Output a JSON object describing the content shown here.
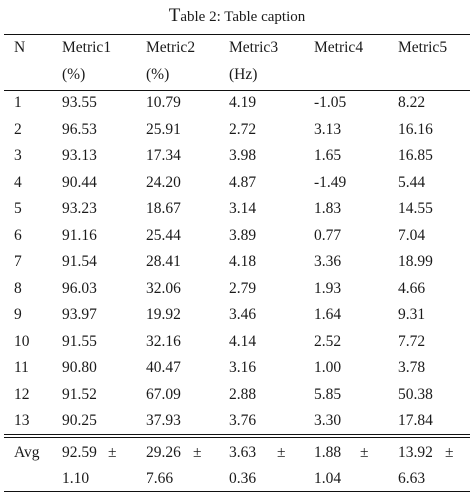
{
  "caption": {
    "first_letter": "T",
    "rest": "able 2: Table caption"
  },
  "header": {
    "row1": [
      "N",
      "Metric1",
      "Metric2",
      "Metric3",
      "Metric4",
      "Metric5"
    ],
    "row2": [
      "",
      "(%)",
      "(%)",
      "(Hz)",
      "",
      ""
    ]
  },
  "rows": [
    [
      "1",
      "93.55",
      "10.79",
      "4.19",
      "-1.05",
      "8.22"
    ],
    [
      "2",
      "96.53",
      "25.91",
      "2.72",
      "3.13",
      "16.16"
    ],
    [
      "3",
      "93.13",
      "17.34",
      "3.98",
      "1.65",
      "16.85"
    ],
    [
      "4",
      "90.44",
      "24.20",
      "4.87",
      "-1.49",
      "5.44"
    ],
    [
      "5",
      "93.23",
      "18.67",
      "3.14",
      "1.83",
      "14.55"
    ],
    [
      "6",
      "91.16",
      "25.44",
      "3.89",
      "0.77",
      "7.04"
    ],
    [
      "7",
      "91.54",
      "28.41",
      "4.18",
      "3.36",
      "18.99"
    ],
    [
      "8",
      "96.03",
      "32.06",
      "2.79",
      "1.93",
      "4.66"
    ],
    [
      "9",
      "93.97",
      "19.92",
      "3.46",
      "1.64",
      "9.31"
    ],
    [
      "10",
      "91.55",
      "32.16",
      "4.14",
      "2.52",
      "7.72"
    ],
    [
      "11",
      "90.80",
      "40.47",
      "3.16",
      "1.00",
      "3.78"
    ],
    [
      "12",
      "91.52",
      "67.09",
      "2.88",
      "5.85",
      "50.38"
    ],
    [
      "13",
      "90.25",
      "37.93",
      "3.76",
      "3.30",
      "17.84"
    ]
  ],
  "avg": {
    "label": "Avg",
    "pm_symbol": "±",
    "means": [
      "92.59",
      "29.26",
      "3.63",
      "1.88",
      "13.92"
    ],
    "stds": [
      "1.10",
      "7.66",
      "0.36",
      "1.04",
      "6.63"
    ]
  }
}
